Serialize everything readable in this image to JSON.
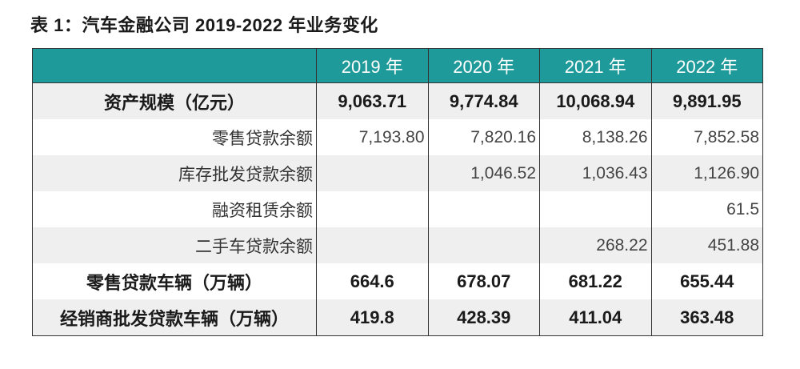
{
  "title": "表 1：汽车金融公司 2019-2022 年业务变化",
  "header": {
    "blank": "",
    "years": [
      "2019 年",
      "2020 年",
      "2021 年",
      "2022 年"
    ]
  },
  "rows": [
    {
      "label": "资产规模（亿元）",
      "style": "bold",
      "values": [
        "9,063.71",
        "9,774.84",
        "10,068.94",
        "9,891.95"
      ]
    },
    {
      "label": "零售贷款余额",
      "style": "sub",
      "values": [
        "7,193.80",
        "7,820.16",
        "8,138.26",
        "7,852.58"
      ]
    },
    {
      "label": "库存批发贷款余额",
      "style": "sub",
      "values": [
        "",
        "1,046.52",
        "1,036.43",
        "1,126.90"
      ]
    },
    {
      "label": "融资租赁余额",
      "style": "sub",
      "values": [
        "",
        "",
        "",
        "61.5"
      ]
    },
    {
      "label": "二手车贷款余额",
      "style": "sub",
      "values": [
        "",
        "",
        "268.22",
        "451.88"
      ]
    },
    {
      "label": "零售贷款车辆（万辆）",
      "style": "bold",
      "values": [
        "664.6",
        "678.07",
        "681.22",
        "655.44"
      ]
    },
    {
      "label": "经销商批发贷款车辆（万辆）",
      "style": "bold",
      "values": [
        "419.8",
        "428.39",
        "411.04",
        "363.48"
      ]
    }
  ]
}
